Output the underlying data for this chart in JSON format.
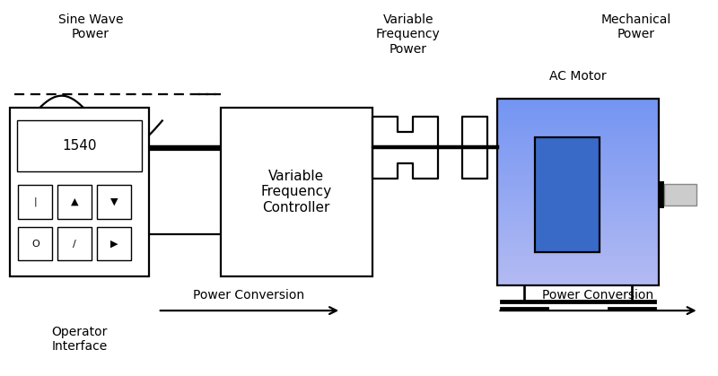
{
  "bg_color": "#ffffff",
  "sine_wave_label": "Sine Wave\nPower",
  "vfd_label": "Variable\nFrequency\nController",
  "vfp_label": "Variable\nFrequency\nPower",
  "motor_label": "AC Motor",
  "mech_label": "Mechanical\nPower",
  "op_interface_label": "Operator\nInterface",
  "power_conv1": "Power Conversion",
  "power_conv2": "Power Conversion",
  "blue_motor_light": "#7aaaff",
  "blue_motor_mid": "#5588ee",
  "blue_motor_dark": "#3366cc",
  "shaft_color": "#bbbbbb",
  "line_color": "#000000",
  "text_color": "#000000",
  "lw": 1.6
}
